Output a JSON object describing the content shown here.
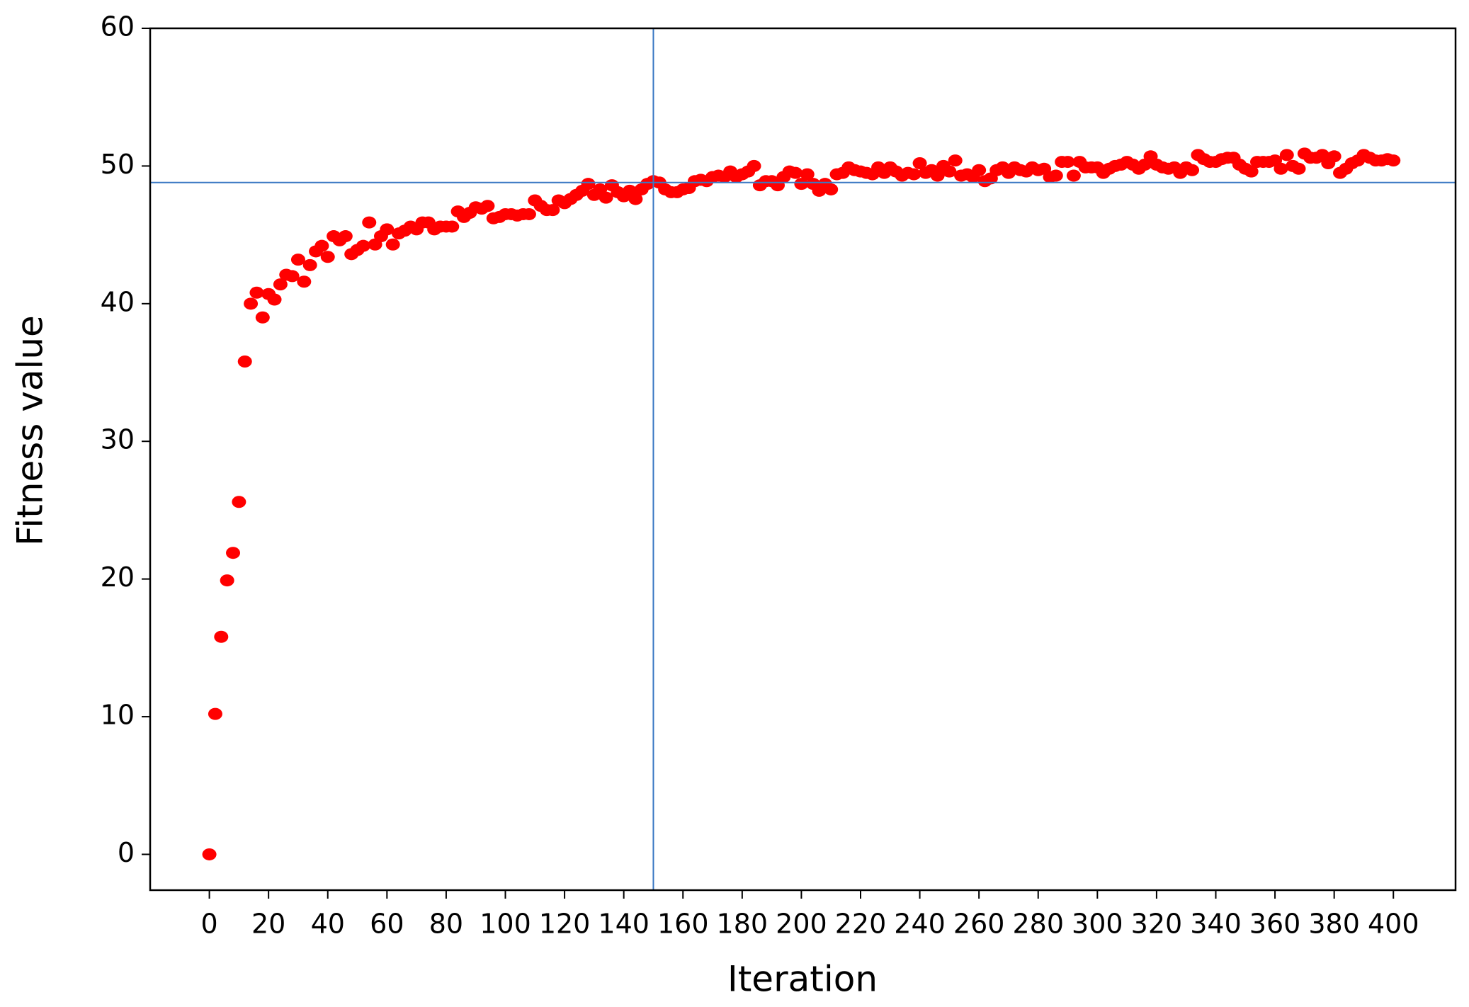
{
  "chart_data": {
    "type": "scatter",
    "x_label": "Iteration",
    "y_label": "Fitness value",
    "color": "#ff0000",
    "ref_color": "#3a78c3",
    "vline": 150,
    "hline": 48.8,
    "xlim": [
      -20,
      421
    ],
    "ylim": [
      -2.6,
      60
    ],
    "xticks": [
      0,
      20,
      40,
      60,
      80,
      100,
      120,
      140,
      160,
      180,
      200,
      220,
      240,
      260,
      280,
      300,
      320,
      340,
      360,
      380,
      400
    ],
    "yticks": [
      0,
      10,
      20,
      30,
      40,
      50,
      60
    ],
    "x": [
      0,
      2,
      4,
      6,
      8,
      10,
      12,
      14,
      16,
      18,
      20,
      22,
      24,
      26,
      28,
      30,
      32,
      34,
      36,
      38,
      40,
      42,
      44,
      46,
      48,
      50,
      52,
      54,
      56,
      58,
      60,
      62,
      64,
      66,
      68,
      70,
      72,
      74,
      76,
      78,
      80,
      82,
      84,
      86,
      88,
      90,
      92,
      94,
      96,
      98,
      100,
      102,
      104,
      106,
      108,
      110,
      112,
      114,
      116,
      118,
      120,
      122,
      124,
      126,
      128,
      130,
      132,
      134,
      136,
      138,
      140,
      142,
      144,
      146,
      148,
      150,
      152,
      154,
      156,
      158,
      160,
      162,
      164,
      166,
      168,
      170,
      172,
      174,
      176,
      178,
      180,
      182,
      184,
      186,
      188,
      190,
      192,
      194,
      196,
      198,
      200,
      202,
      204,
      206,
      208,
      210,
      212,
      214,
      216,
      218,
      220,
      222,
      224,
      226,
      228,
      230,
      232,
      234,
      236,
      238,
      240,
      242,
      244,
      246,
      248,
      250,
      252,
      254,
      256,
      258,
      260,
      262,
      264,
      266,
      268,
      270,
      272,
      274,
      276,
      278,
      280,
      282,
      284,
      286,
      288,
      290,
      292,
      294,
      296,
      298,
      300,
      302,
      304,
      306,
      308,
      310,
      312,
      314,
      316,
      318,
      320,
      322,
      324,
      326,
      328,
      330,
      332,
      334,
      336,
      338,
      340,
      342,
      344,
      346,
      348,
      350,
      352,
      354,
      356,
      358,
      360,
      362,
      364,
      366,
      368,
      370,
      372,
      374,
      376,
      378,
      380,
      382,
      384,
      386,
      388,
      390,
      392,
      394,
      396,
      398,
      400
    ],
    "values": [
      0,
      10.2,
      15.8,
      19.9,
      21.9,
      25.6,
      35.8,
      40,
      40.8,
      39,
      40.7,
      40.3,
      41.4,
      42.1,
      42,
      43.2,
      41.6,
      42.8,
      43.8,
      44.2,
      43.4,
      44.9,
      44.6,
      44.9,
      43.6,
      43.9,
      44.2,
      45.9,
      44.3,
      44.9,
      45.4,
      44.3,
      45.1,
      45.3,
      45.6,
      45.4,
      45.9,
      45.9,
      45.4,
      45.6,
      45.6,
      45.6,
      46.7,
      46.3,
      46.6,
      47,
      46.9,
      47.1,
      46.2,
      46.3,
      46.5,
      46.5,
      46.4,
      46.5,
      46.5,
      47.5,
      47.1,
      46.8,
      46.8,
      47.5,
      47.3,
      47.6,
      47.9,
      48.2,
      48.7,
      47.9,
      48.3,
      47.7,
      48.6,
      48.1,
      47.8,
      48.2,
      47.6,
      48.3,
      48.7,
      48.9,
      48.8,
      48.3,
      48.1,
      48.1,
      48.3,
      48.4,
      48.9,
      49,
      48.9,
      49.2,
      49.3,
      49.2,
      49.6,
      49.2,
      49.4,
      49.6,
      50,
      48.6,
      48.9,
      48.9,
      48.6,
      49.2,
      49.6,
      49.5,
      48.7,
      49.4,
      48.7,
      48.2,
      48.7,
      48.3,
      49.4,
      49.5,
      49.9,
      49.7,
      49.6,
      49.5,
      49.4,
      49.9,
      49.5,
      49.9,
      49.6,
      49.3,
      49.5,
      49.4,
      50.2,
      49.5,
      49.7,
      49.3,
      50,
      49.6,
      50.4,
      49.3,
      49.4,
      49.2,
      49.7,
      48.9,
      49.1,
      49.7,
      49.9,
      49.5,
      49.9,
      49.7,
      49.6,
      49.9,
      49.7,
      49.8,
      49.2,
      49.3,
      50.3,
      50.3,
      49.3,
      50.3,
      49.9,
      49.9,
      49.9,
      49.5,
      49.8,
      50,
      50.1,
      50.3,
      50.1,
      49.8,
      50.1,
      50.7,
      50.1,
      49.9,
      49.8,
      49.9,
      49.5,
      49.9,
      49.7,
      50.8,
      50.5,
      50.3,
      50.3,
      50.5,
      50.6,
      50.6,
      50.1,
      49.8,
      49.6,
      50.3,
      50.3,
      50.3,
      50.4,
      49.8,
      50.8,
      50,
      49.8,
      50.9,
      50.6,
      50.6,
      50.8,
      50.2,
      50.7,
      49.5,
      49.8,
      50.2,
      50.4,
      50.8,
      50.6,
      50.4,
      50.4,
      50.5,
      50.4
    ]
  }
}
